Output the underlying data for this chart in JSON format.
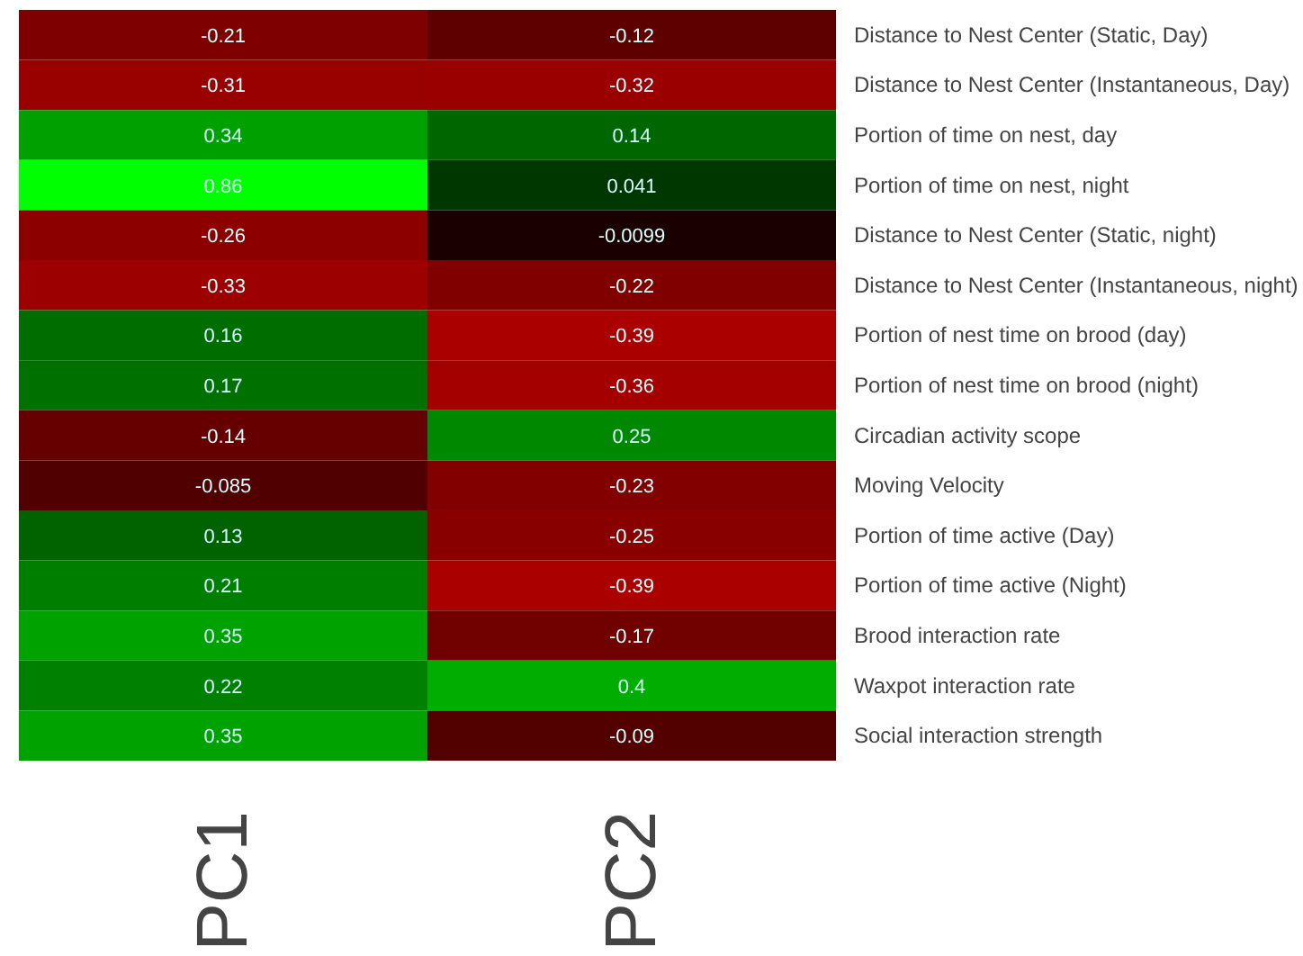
{
  "chart_data": {
    "type": "heatmap",
    "categories": [
      "PC1",
      "PC2"
    ],
    "y_categories": [
      "Distance to Nest Center (Static, Day)",
      "Distance to Nest Center (Instantaneous, Day)",
      "Portion of time on nest, day",
      "Portion of time on nest, night",
      "Distance to Nest Center (Static, night)",
      "Distance to Nest Center (Instantaneous, night)",
      "Portion of nest time on brood (day)",
      "Portion of nest time on brood (night)",
      "Circadian activity scope",
      "Moving Velocity",
      "Portion of time active (Day)",
      "Portion of time active (Night)",
      "Brood interaction rate",
      "Waxpot interaction rate",
      "Social interaction strength"
    ],
    "cells": [
      [
        -0.21,
        -0.12
      ],
      [
        -0.31,
        -0.32
      ],
      [
        0.34,
        0.14
      ],
      [
        0.86,
        0.041
      ],
      [
        -0.26,
        -0.0099
      ],
      [
        -0.33,
        -0.22
      ],
      [
        0.16,
        -0.39
      ],
      [
        0.17,
        -0.36
      ],
      [
        -0.14,
        0.25
      ],
      [
        -0.085,
        -0.23
      ],
      [
        0.13,
        -0.25
      ],
      [
        0.21,
        -0.39
      ],
      [
        0.35,
        -0.17
      ],
      [
        0.22,
        0.4
      ],
      [
        0.35,
        -0.09
      ]
    ],
    "data_labels": true
  }
}
